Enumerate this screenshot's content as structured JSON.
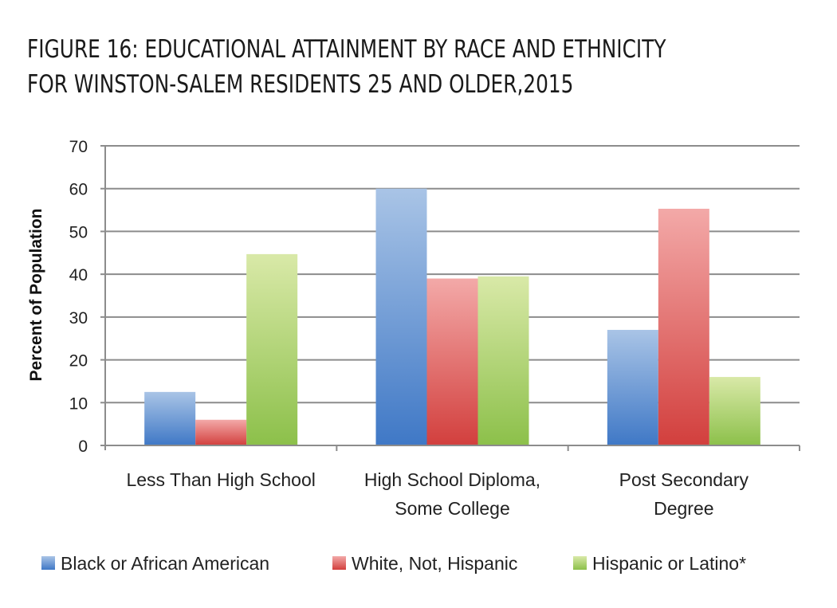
{
  "chart_data": {
    "type": "bar",
    "title_lines": [
      "FIGURE 16: EDUCATIONAL ATTAINMENT BY RACE AND ETHNICITY",
      "FOR WINSTON-SALEM RESIDENTS 25 AND OLDER,2015"
    ],
    "ylabel": "Percent of Population",
    "xlabel": "",
    "ylim": [
      0,
      70
    ],
    "yticks": [
      0,
      10,
      20,
      30,
      40,
      50,
      60,
      70
    ],
    "grid": true,
    "legend_position": "bottom",
    "categories": [
      [
        "Less Than High School"
      ],
      [
        "High School Diploma,",
        "Some College"
      ],
      [
        "Post Secondary",
        "Degree"
      ]
    ],
    "series": [
      {
        "name": "Black or African American",
        "values": [
          12.5,
          60,
          27
        ],
        "color_top": "#a9c4e6",
        "color_bottom": "#3f78c6"
      },
      {
        "name": "White, Not, Hispanic",
        "values": [
          6,
          39,
          55.3
        ],
        "color_top": "#f3a9a8",
        "color_bottom": "#d23f3d"
      },
      {
        "name": "Hispanic or Latino*",
        "values": [
          44.7,
          39.5,
          16
        ],
        "color_top": "#d9e9a8",
        "color_bottom": "#8cc04a"
      }
    ]
  }
}
